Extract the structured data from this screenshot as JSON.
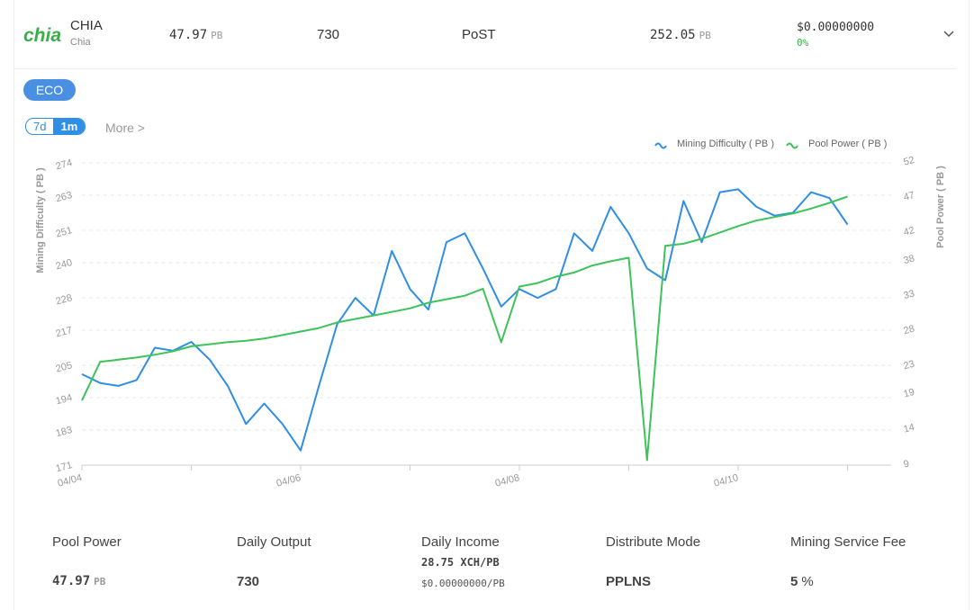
{
  "header": {
    "logo": "chia",
    "name": "CHIA",
    "subname": "Chia",
    "power_value": "47.97",
    "power_unit": "PB",
    "output": "730",
    "algorithm": "PoST",
    "difficulty_value": "252.05",
    "difficulty_unit": "PB",
    "price": "$0.00000000",
    "change": "0%"
  },
  "badge": "ECO",
  "tabs": [
    "7d",
    "1m"
  ],
  "more": "More >",
  "chart_data": {
    "type": "line",
    "categories": [
      "04/04",
      null,
      null,
      null,
      null,
      null,
      null,
      null,
      null,
      null,
      null,
      null,
      "04/06",
      null,
      null,
      null,
      null,
      null,
      null,
      null,
      null,
      null,
      null,
      null,
      "04/08",
      null,
      null,
      null,
      null,
      null,
      null,
      null,
      null,
      null,
      null,
      null,
      "04/10",
      null,
      null,
      null,
      null,
      null,
      null
    ],
    "series": [
      {
        "name": "Mining Difficulty ( PB )",
        "color": "#2f8ee5",
        "values": [
          202,
          199,
          198,
          200,
          211,
          210,
          213,
          207,
          198,
          185,
          192,
          185,
          176,
          198,
          219,
          228,
          222,
          244,
          231,
          224,
          247,
          250,
          238,
          225,
          231,
          228,
          231,
          250,
          244,
          259,
          250,
          238,
          234,
          261,
          247,
          264,
          265,
          259,
          256,
          257,
          264,
          262,
          253
        ]
      },
      {
        "name": "Pool Power ( PB )",
        "color": "#3cc35a",
        "axis": "y2",
        "values": [
          18.2,
          23.7,
          24.0,
          24.3,
          24.7,
          25.2,
          25.9,
          26.2,
          26.5,
          26.7,
          27.0,
          27.5,
          28.0,
          28.5,
          29.3,
          29.8,
          30.3,
          30.8,
          31.3,
          32.1,
          32.6,
          33.1,
          34.1,
          26.5,
          34.4,
          34.9,
          35.8,
          36.4,
          37.4,
          38.0,
          38.5,
          9.7,
          40.2,
          40.5,
          41.2,
          42.1,
          43.0,
          43.8,
          44.3,
          44.8,
          45.5,
          46.3,
          47.2
        ]
      }
    ],
    "y_label": "Mining Difficulty ( PB )",
    "y2_label": "Pool Power ( PB )",
    "ylim": [
      171,
      274
    ],
    "yticks": [
      171,
      183,
      194,
      205,
      217,
      228,
      240,
      251,
      263,
      274
    ],
    "y2lim": [
      9,
      52
    ],
    "y2ticks": [
      9,
      14,
      19,
      23,
      28,
      33,
      38,
      42,
      47,
      52
    ],
    "grid": true,
    "legend": "top-right"
  },
  "stats": [
    {
      "label": "Pool Power",
      "value": "47.97",
      "unit": "PB"
    },
    {
      "label": "Daily Output",
      "value": "730"
    },
    {
      "label": "Daily Income",
      "value": "28.75 XCH/PB",
      "sub": "$0.00000000/PB"
    },
    {
      "label": "Distribute Mode",
      "value": "PPLNS"
    },
    {
      "label": "Mining Service Fee",
      "value": "5",
      "unit": "%"
    }
  ]
}
